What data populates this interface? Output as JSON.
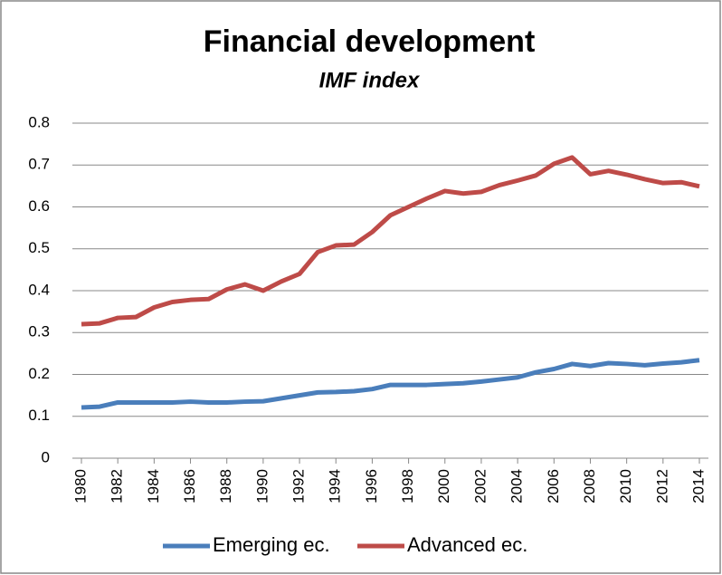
{
  "chart_data": {
    "type": "line",
    "title": "Financial development",
    "subtitle": "IMF index",
    "x": [
      1980,
      1981,
      1982,
      1983,
      1984,
      1985,
      1986,
      1987,
      1988,
      1989,
      1990,
      1991,
      1992,
      1993,
      1994,
      1995,
      1996,
      1997,
      1998,
      1999,
      2000,
      2001,
      2002,
      2003,
      2004,
      2005,
      2006,
      2007,
      2008,
      2009,
      2010,
      2011,
      2012,
      2013,
      2014
    ],
    "series": [
      {
        "name": "Emerging ec.",
        "color": "#4a7ebb",
        "values": [
          0.121,
          0.123,
          0.133,
          0.133,
          0.133,
          0.133,
          0.135,
          0.133,
          0.133,
          0.135,
          0.136,
          0.143,
          0.15,
          0.157,
          0.158,
          0.16,
          0.165,
          0.175,
          0.175,
          0.175,
          0.177,
          0.179,
          0.183,
          0.188,
          0.193,
          0.205,
          0.213,
          0.225,
          0.22,
          0.227,
          0.225,
          0.222,
          0.226,
          0.229,
          0.234
        ]
      },
      {
        "name": "Advanced ec.",
        "color": "#be4b48",
        "values": [
          0.32,
          0.322,
          0.335,
          0.337,
          0.36,
          0.373,
          0.378,
          0.38,
          0.403,
          0.415,
          0.4,
          0.422,
          0.44,
          0.492,
          0.508,
          0.51,
          0.54,
          0.58,
          0.6,
          0.62,
          0.638,
          0.632,
          0.636,
          0.652,
          0.663,
          0.675,
          0.703,
          0.718,
          0.678,
          0.686,
          0.677,
          0.666,
          0.657,
          0.659,
          0.649
        ]
      }
    ],
    "xlim": [
      1980,
      2014
    ],
    "xticks": [
      1980,
      1982,
      1984,
      1986,
      1988,
      1990,
      1992,
      1994,
      1996,
      1998,
      2000,
      2002,
      2004,
      2006,
      2008,
      2010,
      2012,
      2014
    ],
    "ylim": [
      0,
      0.8
    ],
    "yticks": [
      0,
      0.1,
      0.2,
      0.3,
      0.4,
      0.5,
      0.6,
      0.7,
      0.8
    ],
    "grid": true,
    "legend": "bottom"
  }
}
